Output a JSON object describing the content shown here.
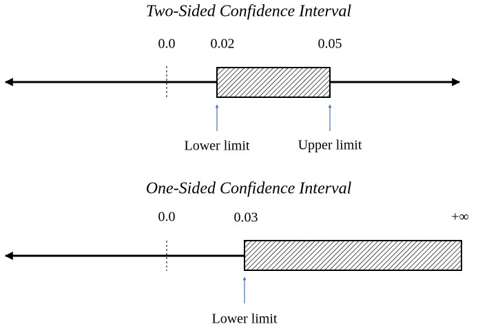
{
  "panels": [
    {
      "title": "Two-Sided Confidence Interval",
      "ticks": [
        "0.0",
        "0.02",
        "0.05"
      ],
      "limits": [
        "Lower limit",
        "Upper limit"
      ]
    },
    {
      "title": "One-Sided Confidence Interval",
      "ticks": [
        "0.0",
        "0.03",
        "+∞"
      ],
      "limits": [
        "Lower limit"
      ]
    }
  ]
}
